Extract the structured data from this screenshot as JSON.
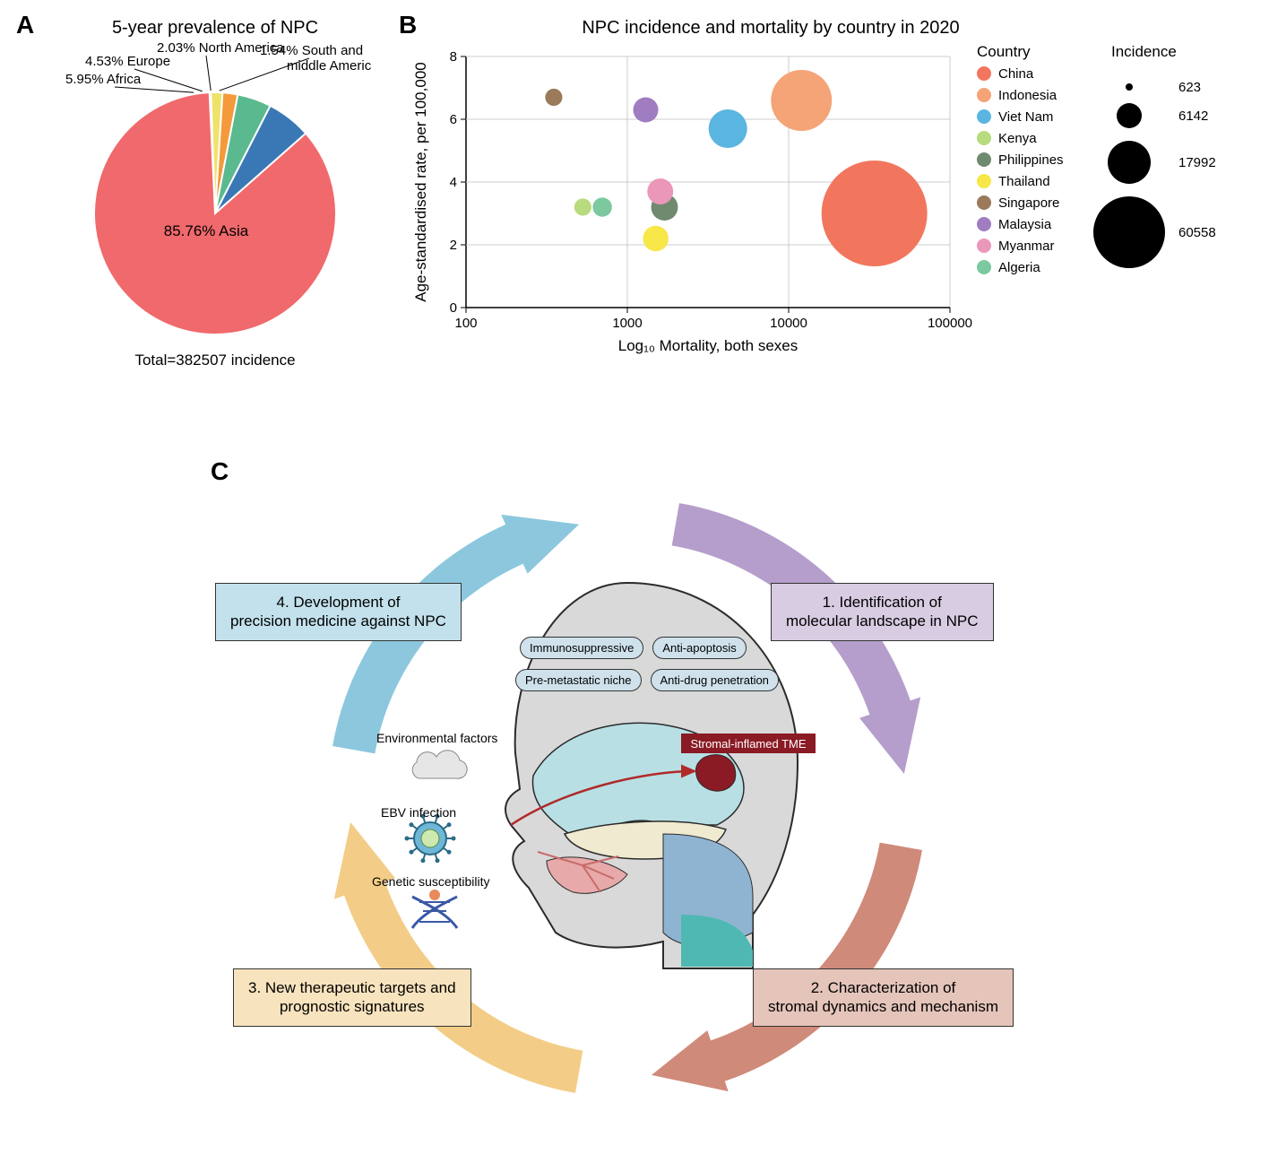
{
  "panelA": {
    "label": "A",
    "title": "5-year prevalence of NPC",
    "footer": "Total=382507 incidence",
    "slices": [
      {
        "name": "Asia",
        "pct": 85.76,
        "label": "85.76% Asia",
        "color": "#f0696c"
      },
      {
        "name": "Africa",
        "pct": 5.95,
        "label": "5.95% Africa",
        "color": "#3a77b5"
      },
      {
        "name": "Europe",
        "pct": 4.53,
        "label": "4.53% Europe",
        "color": "#5ab98e"
      },
      {
        "name": "North America",
        "pct": 2.03,
        "label": "2.03% North America",
        "color": "#f49a3b"
      },
      {
        "name": "South & middle America",
        "pct": 1.54,
        "label": "1.54% South and",
        "label2": "middle America",
        "color": "#eee36a"
      }
    ]
  },
  "panelB": {
    "label": "B",
    "title": "NPC incidence and mortality by country in 2020",
    "xlabel": "Log₁₀ Mortality, both sexes",
    "ylabel": "Age-standardised rate, per 100,000",
    "xlog": true,
    "xticks": [
      100,
      1000,
      10000,
      100000
    ],
    "xtick_labels": [
      "100",
      "1000",
      "10000",
      "100000"
    ],
    "yticks": [
      0,
      2,
      4,
      6,
      8
    ],
    "ylim": [
      0,
      8
    ],
    "grid_color": "#cccccc",
    "axis_color": "#000000",
    "legend_country_title": "Country",
    "legend_size_title": "Incidence",
    "points": [
      {
        "country": "China",
        "mortality": 34000,
        "rate": 3.0,
        "incidence": 60558,
        "color": "#f2765e"
      },
      {
        "country": "Indonesia",
        "mortality": 12000,
        "rate": 6.6,
        "incidence": 17992,
        "color": "#f5a477"
      },
      {
        "country": "Viet Nam",
        "mortality": 4200,
        "rate": 5.7,
        "incidence": 6142,
        "color": "#5ab6e0"
      },
      {
        "country": "Kenya",
        "mortality": 530,
        "rate": 3.2,
        "incidence": 623,
        "color": "#b7db7e"
      },
      {
        "country": "Philippines",
        "mortality": 1700,
        "rate": 3.2,
        "incidence": 2400,
        "color": "#6f8a6e"
      },
      {
        "country": "Thailand",
        "mortality": 1500,
        "rate": 2.2,
        "incidence": 2100,
        "color": "#f7e748"
      },
      {
        "country": "Singapore",
        "mortality": 350,
        "rate": 6.7,
        "incidence": 623,
        "color": "#9a7a5a"
      },
      {
        "country": "Malaysia",
        "mortality": 1300,
        "rate": 6.3,
        "incidence": 2000,
        "color": "#a07cc0"
      },
      {
        "country": "Myanmar",
        "mortality": 1600,
        "rate": 3.7,
        "incidence": 2200,
        "color": "#ea97ba"
      },
      {
        "country": "Algeria",
        "mortality": 700,
        "rate": 3.2,
        "incidence": 900,
        "color": "#7cc9a0"
      }
    ],
    "size_legend": [
      {
        "value": 623,
        "r": 4
      },
      {
        "value": 6142,
        "r": 14
      },
      {
        "value": 17992,
        "r": 24
      },
      {
        "value": 60558,
        "r": 40
      }
    ]
  },
  "panelC": {
    "label": "C",
    "arrows": {
      "c1": "#b59ecb",
      "c2": "#cf8a7a",
      "c3": "#f3cd87",
      "c4": "#8cc7dd"
    },
    "boxes": {
      "b1": {
        "text": "1. Identification of\nmolecular landscape in NPC",
        "bg": "#d7cce2"
      },
      "b2": {
        "text": "2. Characterization of\nstromal dynamics and mechanism",
        "bg": "#e5c4ba"
      },
      "b3": {
        "text": "3. New therapeutic targets and\nprognostic signatures",
        "bg": "#f7e3bd"
      },
      "b4": {
        "text": "4. Development of\nprecision medicine against NPC",
        "bg": "#c3e1ec"
      }
    },
    "pills": {
      "p1": "Immunosuppressive",
      "p2": "Anti-apoptosis",
      "p3": "Pre-metastatic niche",
      "p4": "Anti-drug penetration"
    },
    "tme_label": "Stromal-inflamed TME",
    "factors": {
      "env": "Environmental factors",
      "ebv": "EBV infection",
      "gen": "Genetic susceptibility"
    },
    "head_colors": {
      "skin": "#d9d9d9",
      "nasal": "#b8e0e4",
      "palate": "#f0ead0",
      "throat_upper": "#8fb4d1",
      "throat_lower": "#4fb8b3",
      "tumor": "#8a1a24",
      "outline": "#2b2b2b"
    }
  }
}
